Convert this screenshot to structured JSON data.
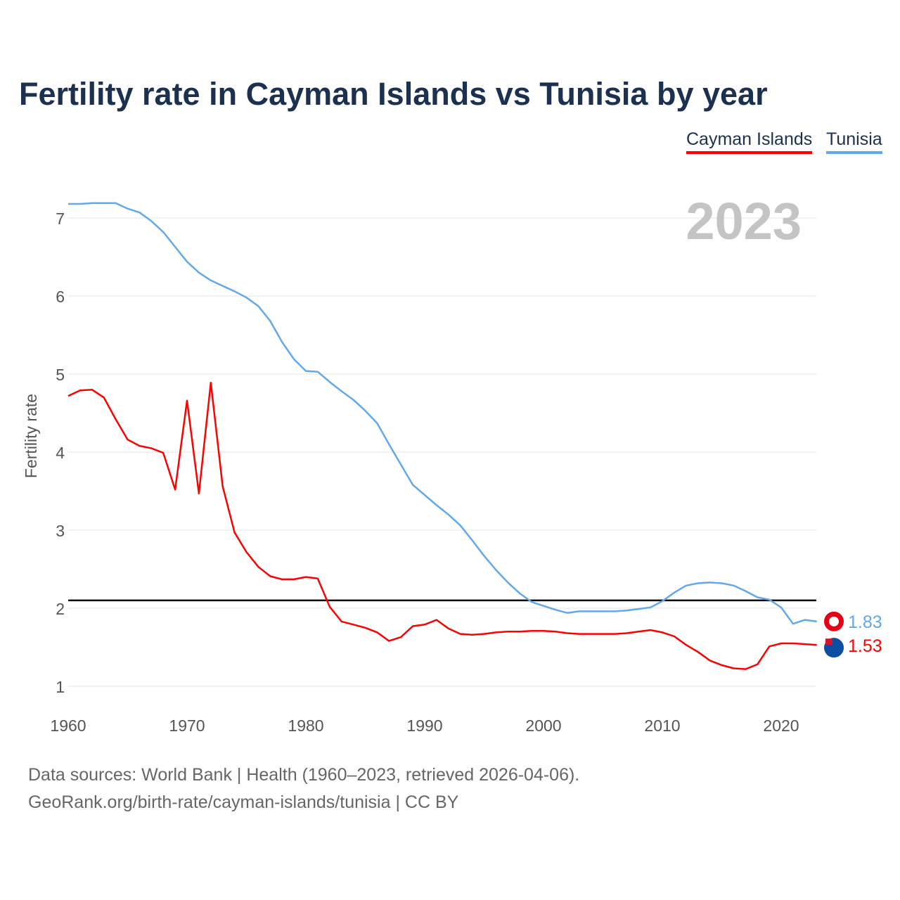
{
  "chart_data": {
    "type": "line",
    "title": "Fertility rate in Cayman Islands vs Tunisia by year",
    "xlabel": "",
    "ylabel": "Fertility rate",
    "xlim": [
      1960,
      2023
    ],
    "ylim": [
      1,
      7.4
    ],
    "xticks": [
      1960,
      1970,
      1980,
      1990,
      2000,
      2010,
      2020
    ],
    "yticks": [
      1,
      2,
      3,
      4,
      5,
      6,
      7
    ],
    "grid": true,
    "legend_position": "top-right",
    "year_label": "2023",
    "reference_line": 2.1,
    "x": [
      1960,
      1961,
      1962,
      1963,
      1964,
      1965,
      1966,
      1967,
      1968,
      1969,
      1970,
      1971,
      1972,
      1973,
      1974,
      1975,
      1976,
      1977,
      1978,
      1979,
      1980,
      1981,
      1982,
      1983,
      1984,
      1985,
      1986,
      1987,
      1988,
      1989,
      1990,
      1991,
      1992,
      1993,
      1994,
      1995,
      1996,
      1997,
      1998,
      1999,
      2000,
      2001,
      2002,
      2003,
      2004,
      2005,
      2006,
      2007,
      2008,
      2009,
      2010,
      2011,
      2012,
      2013,
      2014,
      2015,
      2016,
      2017,
      2018,
      2019,
      2020,
      2021,
      2022,
      2023
    ],
    "series": [
      {
        "name": "Cayman Islands",
        "color": "#ff0000",
        "end_label": "1.53",
        "values": [
          4.72,
          4.79,
          4.8,
          4.7,
          4.42,
          4.16,
          4.08,
          4.05,
          3.99,
          3.52,
          4.66,
          3.47,
          4.89,
          3.56,
          2.97,
          2.72,
          2.53,
          2.41,
          2.37,
          2.37,
          2.4,
          2.38,
          2.02,
          1.83,
          1.79,
          1.75,
          1.69,
          1.58,
          1.63,
          1.77,
          1.79,
          1.85,
          1.74,
          1.67,
          1.66,
          1.67,
          1.69,
          1.7,
          1.7,
          1.71,
          1.71,
          1.7,
          1.68,
          1.67,
          1.67,
          1.67,
          1.67,
          1.68,
          1.7,
          1.72,
          1.69,
          1.64,
          1.53,
          1.44,
          1.33,
          1.27,
          1.23,
          1.22,
          1.28,
          1.51,
          1.55,
          1.55,
          1.54,
          1.53
        ]
      },
      {
        "name": "Tunisia",
        "color": "#64a8ec",
        "end_label": "1.83",
        "values": [
          7.18,
          7.18,
          7.19,
          7.19,
          7.19,
          7.12,
          7.07,
          6.96,
          6.82,
          6.63,
          6.44,
          6.3,
          6.2,
          6.13,
          6.06,
          5.98,
          5.87,
          5.68,
          5.41,
          5.19,
          5.04,
          5.03,
          4.9,
          4.78,
          4.67,
          4.53,
          4.37,
          4.1,
          3.84,
          3.58,
          3.45,
          3.32,
          3.2,
          3.06,
          2.87,
          2.67,
          2.49,
          2.33,
          2.19,
          2.08,
          2.03,
          1.98,
          1.94,
          1.96,
          1.96,
          1.96,
          1.96,
          1.97,
          1.99,
          2.01,
          2.09,
          2.2,
          2.29,
          2.32,
          2.33,
          2.32,
          2.29,
          2.22,
          2.14,
          2.11,
          2.01,
          1.8,
          1.85,
          1.83
        ]
      }
    ]
  },
  "footer": {
    "line1": "Data sources: World Bank | Health (1960–2023, retrieved 2026-04-06).",
    "line2": "GeoRank.org/birth-rate/cayman-islands/tunisia | CC BY"
  }
}
